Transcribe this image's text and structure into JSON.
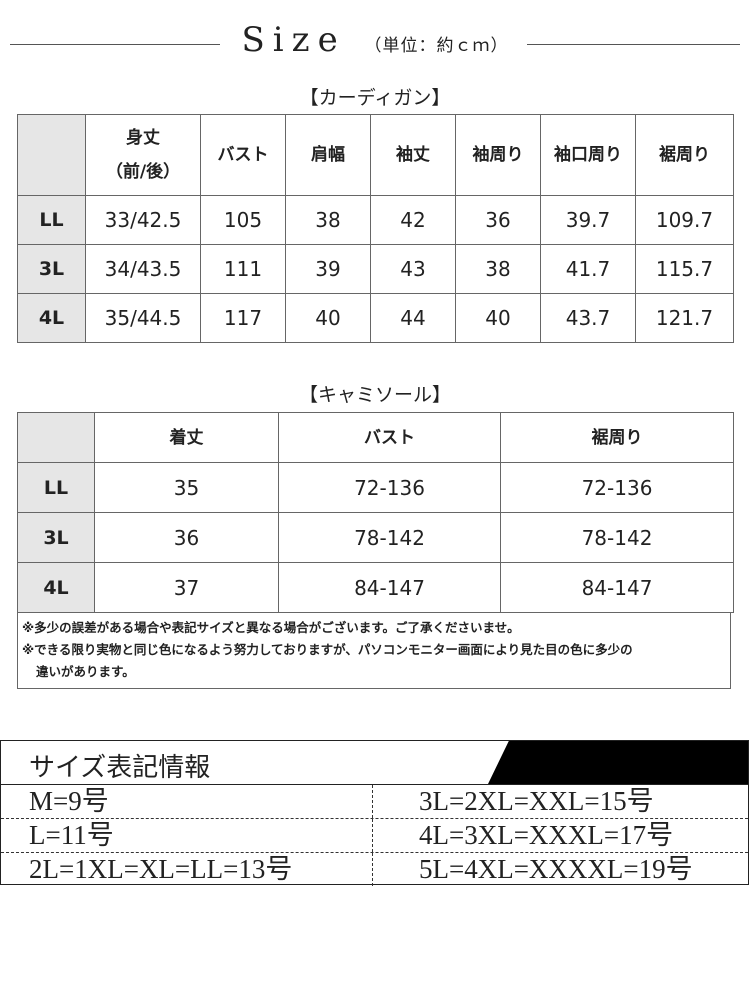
{
  "header": {
    "title": "Size",
    "unit": "（単位：約ｃｍ）"
  },
  "cardigan": {
    "title": "【カーディガン】",
    "headers": [
      "身丈\n（前/後）",
      "バスト",
      "肩幅",
      "袖丈",
      "袖周り",
      "袖口周り",
      "裾周り"
    ],
    "rows": [
      {
        "size": "LL",
        "values": [
          "33/42.5",
          "105",
          "38",
          "42",
          "36",
          "39.7",
          "109.7"
        ]
      },
      {
        "size": "3L",
        "values": [
          "34/43.5",
          "111",
          "39",
          "43",
          "38",
          "41.7",
          "115.7"
        ]
      },
      {
        "size": "4L",
        "values": [
          "35/44.5",
          "117",
          "40",
          "44",
          "40",
          "43.7",
          "121.7"
        ]
      }
    ]
  },
  "camisole": {
    "title": "【キャミソール】",
    "headers": [
      "着丈",
      "バスト",
      "裾周り"
    ],
    "rows": [
      {
        "size": "LL",
        "values": [
          "35",
          "72-136",
          "72-136"
        ]
      },
      {
        "size": "3L",
        "values": [
          "36",
          "78-142",
          "78-142"
        ]
      },
      {
        "size": "4L",
        "values": [
          "37",
          "84-147",
          "84-147"
        ]
      }
    ]
  },
  "notes": [
    "※多少の誤差がある場合や表記サイズと異なる場合がございます。ご了承くださいませ。",
    "※できる限り実物と同じ色になるよう努力しておりますが、パソコンモニター画面により見た目の色に多少の",
    "違いがあります。"
  ],
  "size_info": {
    "title": "サイズ表記情報",
    "rows": [
      [
        "M=9号",
        "3L=2XL=XXL=15号"
      ],
      [
        "L=11号",
        "4L=3XL=XXXL=17号"
      ],
      [
        "2L=1XL=XL=LL=13号",
        "5L=4XL=XXXXL=19号"
      ]
    ]
  }
}
